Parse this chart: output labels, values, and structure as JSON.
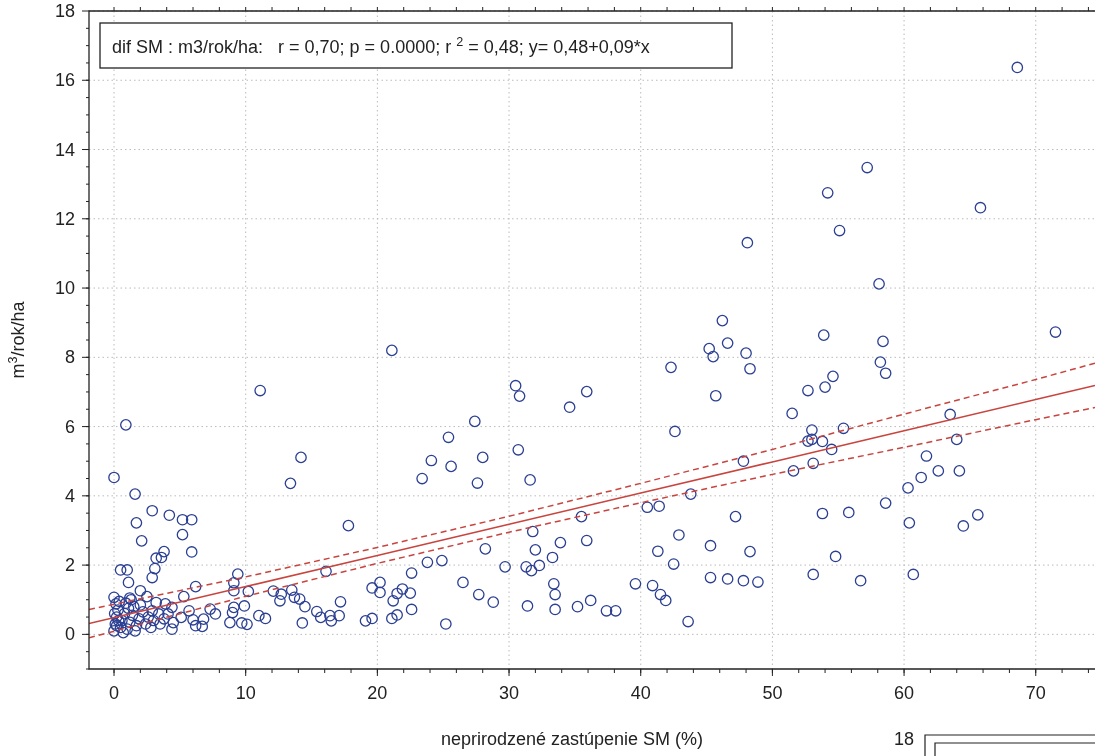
{
  "chart_data": {
    "type": "scatter",
    "xlabel": "neprirodzené zastúpenie SM (%)",
    "ylabel": "m$^{3}$/rok/ha",
    "annotations": [
      "dif SM : m3/rok/ha:   r = 0,70; p = 0.0000; r $^{2}$ = 0,48; y= 0,48+0,09*x",
      "18"
    ],
    "xlim": [
      -1.9,
      74.5
    ],
    "ylim": [
      -1,
      18
    ],
    "xticks": [
      0,
      10,
      20,
      30,
      40,
      50,
      60,
      70
    ],
    "yticks": [
      0,
      2,
      4,
      6,
      8,
      10,
      12,
      14,
      16,
      18
    ],
    "grid": true,
    "marker": "circle",
    "series": [
      {
        "color": "#2b3f93",
        "x": [
          68.6,
          57.2,
          54.2,
          65.8,
          55.1,
          48.1,
          58.1,
          46.2,
          45.2,
          45.5,
          46.6,
          48.0,
          48.3,
          53.9,
          58.4,
          58.2,
          58.6,
          71.5,
          54.6,
          45.7,
          52.7,
          54.0,
          51.5,
          53.0,
          52.7,
          53.0,
          53.8,
          55.4,
          54.5,
          47.8,
          51.6,
          53.1,
          63.5,
          64.0,
          61.7,
          61.3,
          62.6,
          64.2,
          60.3,
          58.6,
          60.4,
          64.5,
          65.6,
          47.2,
          53.8,
          55.8,
          45.3,
          48.3,
          54.8,
          45.3,
          46.6,
          47.8,
          48.9,
          53.1,
          56.7,
          60.7,
          21.1,
          30.5,
          30.8,
          34.6,
          35.9,
          42.3,
          42.6,
          27.4,
          25.4,
          24.1,
          25.6,
          28.0,
          23.4,
          27.6,
          30.7,
          31.6,
          43.8,
          40.5,
          41.4,
          35.5,
          31.8,
          35.9,
          33.9,
          42.9,
          32.0,
          28.2,
          33.3,
          41.3,
          42.5,
          23.8,
          24.9,
          29.7,
          31.3,
          31.7,
          32.3,
          22.6,
          26.5,
          20.2,
          33.4,
          39.6,
          40.9,
          20.2,
          22.5,
          21.9,
          21.5,
          21.2,
          27.7,
          33.5,
          41.5,
          41.9,
          28.8,
          36.2,
          22.6,
          21.1,
          21.5,
          31.4,
          33.5,
          35.2,
          37.4,
          38.1,
          25.2,
          43.6,
          11.1,
          0.9,
          14.2,
          13.4,
          0.0,
          1.6,
          17.8,
          2.9,
          4.2,
          5.2,
          5.9,
          1.7,
          5.2,
          2.1,
          5.9,
          3.8,
          3.6,
          3.2,
          3.1,
          2.9,
          0.5,
          1.0,
          1.1,
          16.1,
          9.4,
          9.1,
          9.1,
          10.2,
          6.2,
          12.1,
          12.7,
          13.5,
          13.7,
          14.1,
          14.5,
          12.6,
          19.6,
          17.2,
          15.4,
          15.7,
          16.4,
          16.5,
          17.1,
          14.3,
          19.1,
          19.6,
          11.0,
          11.5,
          9.9,
          9.0,
          9.7,
          10.1,
          8.8,
          9.1,
          7.7,
          7.3,
          6.8,
          6.7,
          6.2,
          6.0,
          5.3,
          5.7,
          5.1,
          4.4,
          4.5,
          0.0,
          0.15,
          1.2,
          2.0,
          2.5,
          3.2,
          3.9,
          4.4,
          4.1,
          3.4,
          2.9,
          0.0,
          0.1,
          0.2,
          0.3,
          0.5,
          0.6,
          0.8,
          0.9,
          1.0,
          1.2,
          1.4,
          1.5,
          1.7,
          1.9,
          2.2,
          2.4,
          2.6,
          0.4,
          0.7,
          1.1,
          0.2,
          2.8,
          3.0,
          1.3,
          0.05,
          1.6,
          2.0,
          3.5,
          3.8,
          0.35
        ],
        "values": [
          16.37,
          13.48,
          12.75,
          12.32,
          11.66,
          11.31,
          10.12,
          9.06,
          8.25,
          8.02,
          8.41,
          8.12,
          7.67,
          8.64,
          8.46,
          7.86,
          7.54,
          8.73,
          7.45,
          6.89,
          7.04,
          7.14,
          6.38,
          5.9,
          5.58,
          5.63,
          5.57,
          5.95,
          5.34,
          5.0,
          4.72,
          4.94,
          6.35,
          5.63,
          5.15,
          4.53,
          4.72,
          4.72,
          4.23,
          3.79,
          3.22,
          3.13,
          3.45,
          3.4,
          3.49,
          3.52,
          2.56,
          2.39,
          2.25,
          1.64,
          1.6,
          1.55,
          1.51,
          1.73,
          1.55,
          1.73,
          8.2,
          7.18,
          6.88,
          6.56,
          7.01,
          7.71,
          5.86,
          6.15,
          5.69,
          5.02,
          4.85,
          5.11,
          4.5,
          4.37,
          5.33,
          4.46,
          4.05,
          3.67,
          3.7,
          3.4,
          2.97,
          2.71,
          2.65,
          2.87,
          2.44,
          2.47,
          2.22,
          2.4,
          2.03,
          2.08,
          2.13,
          1.95,
          1.95,
          1.84,
          1.99,
          1.77,
          1.5,
          1.5,
          1.46,
          1.46,
          1.41,
          1.21,
          1.19,
          1.31,
          1.18,
          0.97,
          1.15,
          1.15,
          1.15,
          0.98,
          0.93,
          0.98,
          0.72,
          0.46,
          0.56,
          0.82,
          0.72,
          0.8,
          0.68,
          0.68,
          0.3,
          0.37,
          7.04,
          6.05,
          5.11,
          4.36,
          4.53,
          4.05,
          3.14,
          3.57,
          3.44,
          3.31,
          3.31,
          3.22,
          2.88,
          2.7,
          2.38,
          2.39,
          2.22,
          2.2,
          1.9,
          1.64,
          1.86,
          1.86,
          1.5,
          1.82,
          1.74,
          1.49,
          1.26,
          1.24,
          1.38,
          1.25,
          1.16,
          1.28,
          1.07,
          1.02,
          0.8,
          0.97,
          1.34,
          0.94,
          0.66,
          0.49,
          0.54,
          0.39,
          0.54,
          0.33,
          0.39,
          0.46,
          0.54,
          0.46,
          0.82,
          0.63,
          0.33,
          0.29,
          0.34,
          0.78,
          0.59,
          0.73,
          0.44,
          0.23,
          0.25,
          0.42,
          1.09,
          0.68,
          0.49,
          0.15,
          0.34,
          1.07,
          0.88,
          1.05,
          1.26,
          1.09,
          0.92,
          0.88,
          0.78,
          0.59,
          0.59,
          0.68,
          0.1,
          0.3,
          0.5,
          0.7,
          0.2,
          0.4,
          0.6,
          0.9,
          0.15,
          0.35,
          0.55,
          0.8,
          0.25,
          0.45,
          0.65,
          0.3,
          0.5,
          0.95,
          0.05,
          0.75,
          0.25,
          0.2,
          0.4,
          1.0,
          0.6,
          0.1,
          0.85,
          0.3,
          0.45,
          0.4
        ]
      },
      {
        "type": "line",
        "color": "#c8453f",
        "marker": "none",
        "line_style": "solid",
        "x": [
          -1.9,
          10,
          20,
          30,
          40,
          50,
          60,
          70,
          74.5
        ],
        "values": [
          0.31,
          1.38,
          2.28,
          3.18,
          4.08,
          4.98,
          5.88,
          6.78,
          7.19
        ]
      },
      {
        "type": "line",
        "color": "#c8453f",
        "marker": "none",
        "line_style": "dashed",
        "x": [
          -1.9,
          10,
          20,
          30,
          40,
          50,
          60,
          70,
          74.5
        ],
        "values": [
          -0.1,
          1.1,
          2.05,
          2.95,
          3.8,
          4.62,
          5.4,
          6.2,
          6.55
        ]
      },
      {
        "type": "line",
        "color": "#c8453f",
        "marker": "none",
        "line_style": "dashed",
        "x": [
          -1.9,
          10,
          20,
          30,
          40,
          50,
          60,
          70,
          74.5
        ],
        "values": [
          0.72,
          1.66,
          2.51,
          3.41,
          4.36,
          5.34,
          6.36,
          7.36,
          7.83
        ]
      }
    ]
  }
}
